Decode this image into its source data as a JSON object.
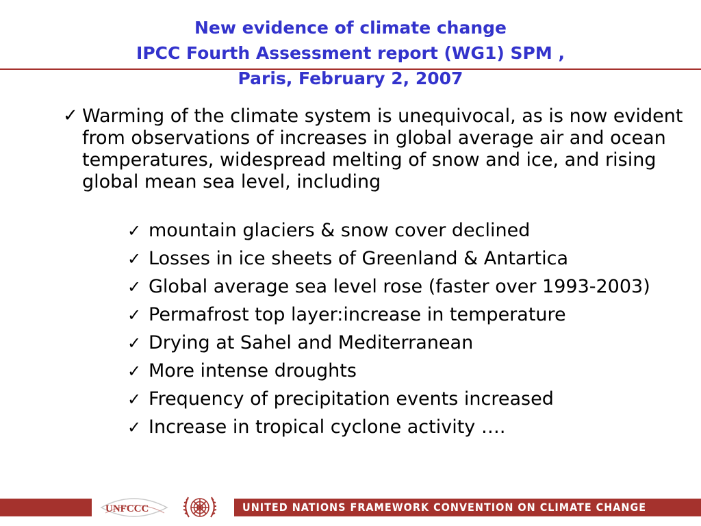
{
  "title": {
    "line1": "New evidence of climate change",
    "line2": "IPCC Fourth Assessment report (WG1) SPM ,",
    "line3": "Paris, February 2, 2007"
  },
  "main_bullet": {
    "icon": "checkmark-icon",
    "text": "Warming of the climate system is unequivocal, as is now evident from observations of increases in global average air and ocean temperatures, widespread melting of snow and ice, and rising global mean sea level, including"
  },
  "sub_bullets": [
    "mountain glaciers & snow cover declined",
    "Losses in ice sheets of Greenland & Antartica",
    "Global average sea level rose (faster over 1993-2003)",
    "Permafrost top layer:increase in temperature",
    "Drying at Sahel and Mediterranean",
    "More intense droughts",
    "Frequency of precipitation events increased",
    "Increase in tropical cyclone activity …."
  ],
  "check_glyph": "✓",
  "footer": {
    "logo_text": "UNFCCC",
    "banner_text": "UNITED NATIONS FRAMEWORK CONVENTION ON CLIMATE CHANGE"
  },
  "colors": {
    "title": "#3333cc",
    "accent": "#a5322d",
    "body_text": "#000000"
  }
}
